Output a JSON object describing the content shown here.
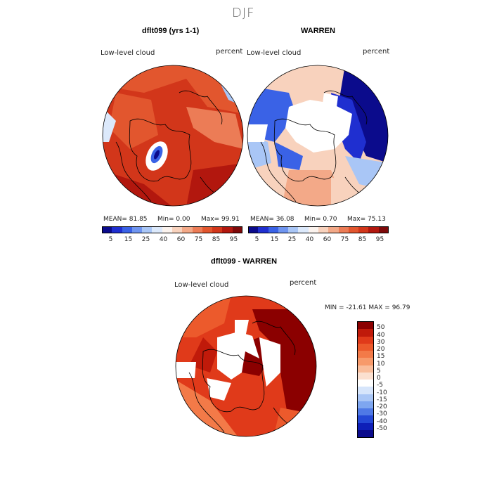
{
  "figure": {
    "season": "DJF",
    "colors": {
      "bg": "#ffffff",
      "ocean_bg": "#f4f4f4",
      "land_line": "#000000"
    }
  },
  "panel_left": {
    "title": "dflt099 (yrs 1-1)",
    "variable": "Low-level cloud",
    "units": "percent",
    "stats": {
      "mean_label": "MEAN=",
      "mean": "81.85",
      "min_label": "Min=",
      "min": "0.00",
      "max_label": "Max=",
      "max": "99.91"
    }
  },
  "panel_right": {
    "title": "WARREN",
    "variable": "Low-level cloud",
    "units": "percent",
    "stats": {
      "mean_label": "MEAN=",
      "mean": "36.08",
      "min_label": "Min=",
      "min": "0.70",
      "max_label": "Max=",
      "max": "75.13"
    }
  },
  "colorbar_top": {
    "labels": [
      "5",
      "15",
      "25",
      "40",
      "60",
      "75",
      "85",
      "95"
    ],
    "colors": [
      "#0b0b8c",
      "#1f2fd0",
      "#3a62e6",
      "#6f95f0",
      "#a9c6f6",
      "#dce9fb",
      "#fbf3ee",
      "#f8d2bd",
      "#f3a988",
      "#ec7c56",
      "#e2562e",
      "#d2361a",
      "#b2170e",
      "#7d0909"
    ]
  },
  "panel_diff": {
    "title": "dflt099 - WARREN",
    "variable": "Low-level cloud",
    "units": "percent",
    "stats": {
      "min_label": "MIN =",
      "min": "-21.61",
      "max_label": "MAX =",
      "max": "96.79"
    }
  },
  "colorbar_diff": {
    "labels": [
      "50",
      "40",
      "30",
      "20",
      "15",
      "10",
      "5",
      "0",
      "-5",
      "-10",
      "-15",
      "-20",
      "-30",
      "-40",
      "-50"
    ],
    "colors": [
      "#8b0000",
      "#c01a0a",
      "#e03a1a",
      "#ec5a2c",
      "#f37a48",
      "#f79a6b",
      "#f9bd9b",
      "#fbe0d0",
      "#ffffff",
      "#d6e5fb",
      "#a9c6f6",
      "#7ea6f0",
      "#4f79e6",
      "#2448d6",
      "#0e1fb8",
      "#0b0b8c"
    ]
  }
}
